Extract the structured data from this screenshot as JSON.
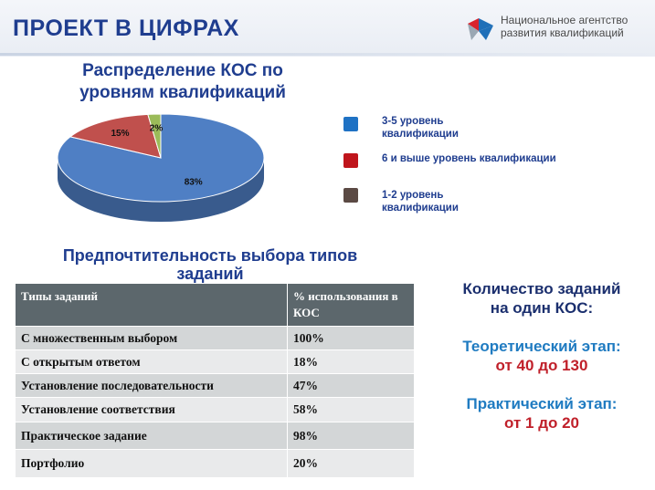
{
  "header": {
    "title": "ПРОЕКТ В ЦИФРАХ",
    "logo_line1": "Национальное агентство",
    "logo_line2": "развития квалификаций",
    "logo_colors": [
      "#d9232d",
      "#1f6fb8",
      "#9aa7b3"
    ]
  },
  "chart_data": {
    "type": "pie",
    "title_line1": "Распределение КОС по",
    "title_line2": "уровням квалификаций",
    "labels": [
      "3-5 уровень квалификации",
      "6 и выше  уровень квалификации",
      "1-2 уровень квалификации"
    ],
    "values": [
      83,
      15,
      2
    ],
    "data_labels": [
      "83%",
      "15%",
      "2%"
    ],
    "colors": [
      "#4f7fc4",
      "#c0504d",
      "#9bbb59"
    ],
    "legend_placement": "right",
    "legend": [
      {
        "line1": "3-5 уровень",
        "line2": "квалификации",
        "color": "#1f72c4"
      },
      {
        "line1": "6 и выше  уровень квалификации",
        "line2": "",
        "color": "#c0151c"
      },
      {
        "line1": "1-2 уровень",
        "line2": "квалификации",
        "color": "#5b4a44"
      }
    ]
  },
  "table": {
    "title_line1": "Предпочтительность выбора типов",
    "title_line2": "заданий",
    "headers": [
      "Типы заданий",
      "% использования в КОС"
    ],
    "rows": [
      {
        "type": "С множественным выбором",
        "percent": "100%"
      },
      {
        "type": "С открытым ответом",
        "percent": "18%"
      },
      {
        "type": "Установление последовательности",
        "percent": "47%"
      },
      {
        "type": "Установление соответствия",
        "percent": "58%"
      },
      {
        "type": "Практическое задание",
        "percent": "98%"
      },
      {
        "type": "Портфолио",
        "percent": "20%"
      }
    ]
  },
  "stats": {
    "heading_line1": "Количество заданий",
    "heading_line2": "на один КОС:",
    "theory_label": "Теоретический этап:",
    "theory_value": "от 40 до 130",
    "practice_label": "Практический этап:",
    "practice_value": "от 1 до 20"
  }
}
